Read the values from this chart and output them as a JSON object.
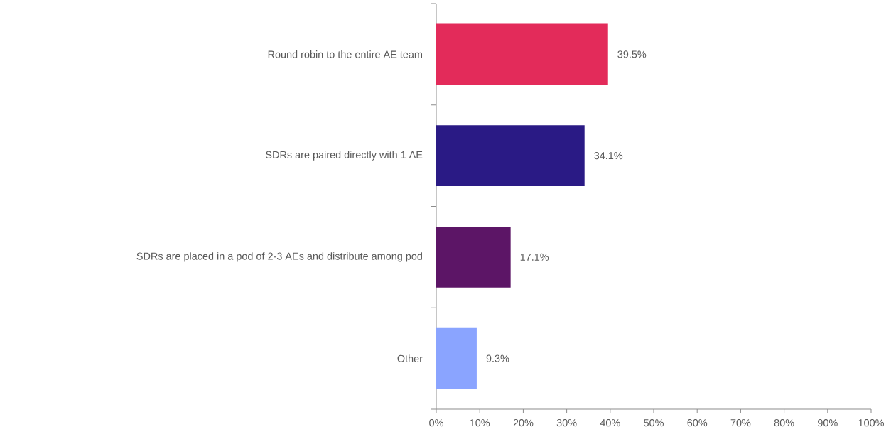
{
  "chart_data": {
    "type": "bar",
    "orientation": "horizontal",
    "categories": [
      "Round robin to the entire AE team",
      "SDRs are paired directly with 1 AE",
      "SDRs are placed in a pod of 2-3 AEs and distribute among pod",
      "Other"
    ],
    "values": [
      39.5,
      34.1,
      17.1,
      9.3
    ],
    "colors": [
      "#e32b5a",
      "#2a1a85",
      "#5c1566",
      "#8aa4ff"
    ],
    "value_labels": [
      "39.5%",
      "34.1%",
      "17.1%",
      "9.3%"
    ],
    "xlim": [
      0,
      100
    ],
    "xticks": [
      {
        "value": 0,
        "label": "0%"
      },
      {
        "value": 10,
        "label": "10%"
      },
      {
        "value": 20,
        "label": "20%"
      },
      {
        "value": 30,
        "label": "30%"
      },
      {
        "value": 40,
        "label": "40%"
      },
      {
        "value": 50,
        "label": "50%"
      },
      {
        "value": 60,
        "label": "60%"
      },
      {
        "value": 70,
        "label": "70%"
      },
      {
        "value": 80,
        "label": "80%"
      },
      {
        "value": 90,
        "label": "90%"
      },
      {
        "value": 100,
        "label": "100%"
      }
    ],
    "grid": false
  }
}
